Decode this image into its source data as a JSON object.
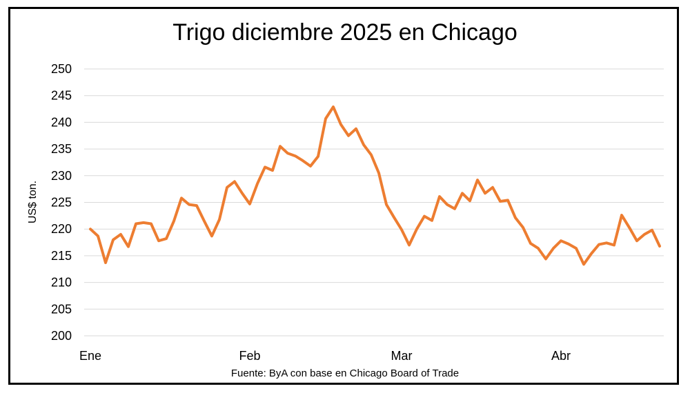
{
  "chart_data": {
    "type": "line",
    "title": "Trigo diciembre 2025 en Chicago",
    "ylabel": "US$ ton.",
    "xlabel": "",
    "source": "Fuente: ByA con base en Chicago Board of Trade",
    "ylim": [
      200,
      250
    ],
    "yticks": [
      "200",
      "205",
      "210",
      "215",
      "220",
      "225",
      "230",
      "235",
      "240",
      "245",
      "250"
    ],
    "xticks": [
      {
        "label": "Ene",
        "index": 0
      },
      {
        "label": "Feb",
        "index": 21
      },
      {
        "label": "Mar",
        "index": 41
      },
      {
        "label": "Abr",
        "index": 62
      }
    ],
    "grid": true,
    "legend": "none",
    "series": [
      {
        "color": "#ED7D31",
        "values": [
          220.0,
          218.7,
          213.7,
          218.0,
          219.0,
          216.7,
          221.0,
          221.2,
          221.0,
          217.8,
          218.2,
          221.5,
          225.8,
          224.6,
          224.4,
          221.5,
          218.7,
          221.8,
          227.8,
          228.9,
          226.7,
          224.7,
          228.5,
          231.6,
          231.0,
          235.5,
          234.2,
          233.7,
          232.8,
          231.8,
          233.6,
          240.7,
          242.9,
          239.6,
          237.5,
          238.8,
          235.8,
          233.9,
          230.5,
          224.6,
          222.2,
          219.9,
          217.0,
          220.0,
          222.4,
          221.6,
          226.1,
          224.6,
          223.8,
          226.7,
          225.3,
          229.2,
          226.7,
          227.8,
          225.2,
          225.4,
          222.1,
          220.3,
          217.3,
          216.4,
          214.4,
          216.4,
          217.8,
          217.2,
          216.4,
          213.4,
          215.4,
          217.1,
          217.4,
          217.0,
          222.6,
          220.3,
          217.8,
          219.0,
          219.8,
          216.8
        ]
      }
    ]
  }
}
